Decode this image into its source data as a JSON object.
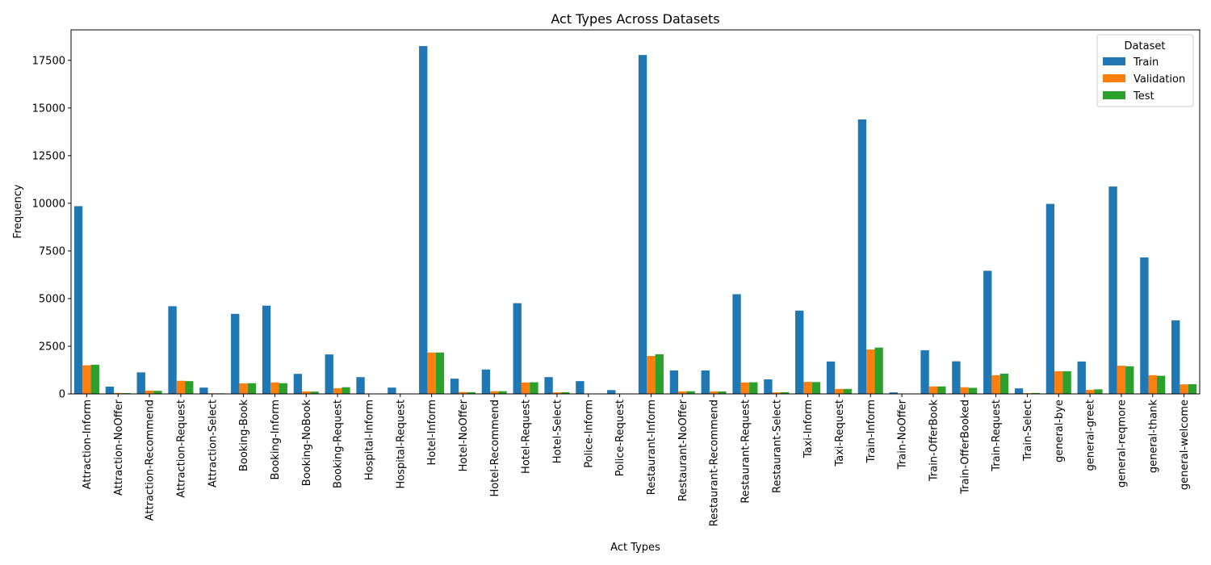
{
  "chart_data": {
    "type": "bar",
    "title": "Act Types Across Datasets",
    "xlabel": "Act Types",
    "ylabel": "Frequency",
    "ylim": [
      0,
      19100
    ],
    "yticks": [
      0,
      2500,
      5000,
      7500,
      10000,
      12500,
      15000,
      17500
    ],
    "grid": false,
    "legend": {
      "title": "Dataset",
      "placement": "top-right"
    },
    "categories": [
      "Attraction-Inform",
      "Attraction-NoOffer",
      "Attraction-Recommend",
      "Attraction-Request",
      "Attraction-Select",
      "Booking-Book",
      "Booking-Inform",
      "Booking-NoBook",
      "Booking-Request",
      "Hospital-Inform",
      "Hospital-Request",
      "Hotel-Inform",
      "Hotel-NoOffer",
      "Hotel-Recommend",
      "Hotel-Request",
      "Hotel-Select",
      "Police-Inform",
      "Police-Request",
      "Restaurant-Inform",
      "Restaurant-NoOffer",
      "Restaurant-Recommend",
      "Restaurant-Request",
      "Restaurant-Select",
      "Taxi-Inform",
      "Taxi-Request",
      "Train-Inform",
      "Train-NoOffer",
      "Train-OfferBook",
      "Train-OfferBooked",
      "Train-Request",
      "Train-Select",
      "general-bye",
      "general-greet",
      "general-reqmore",
      "general-thank",
      "general-welcome"
    ],
    "series": [
      {
        "name": "Train",
        "color": "#1f77b4",
        "values": [
          9850,
          380,
          1130,
          4600,
          330,
          4200,
          4630,
          1050,
          2070,
          880,
          330,
          18250,
          800,
          1280,
          4760,
          880,
          670,
          200,
          17780,
          1230,
          1230,
          5230,
          760,
          4370,
          1700,
          14400,
          80,
          2290,
          1710,
          6460,
          290,
          9970,
          1700,
          10880,
          7160,
          3860
        ]
      },
      {
        "name": "Validation",
        "color": "#ff7f0e",
        "values": [
          1500,
          50,
          170,
          690,
          30,
          550,
          600,
          130,
          300,
          0,
          0,
          2170,
          100,
          140,
          600,
          80,
          0,
          0,
          1990,
          130,
          130,
          600,
          80,
          630,
          260,
          2330,
          0,
          390,
          350,
          980,
          40,
          1190,
          210,
          1480,
          980,
          500
        ]
      },
      {
        "name": "Test",
        "color": "#2ca02c",
        "values": [
          1530,
          40,
          160,
          670,
          30,
          560,
          560,
          120,
          350,
          0,
          0,
          2170,
          90,
          140,
          610,
          90,
          0,
          0,
          2080,
          140,
          130,
          610,
          90,
          620,
          260,
          2430,
          0,
          390,
          320,
          1060,
          50,
          1190,
          240,
          1450,
          950,
          510
        ]
      }
    ]
  }
}
